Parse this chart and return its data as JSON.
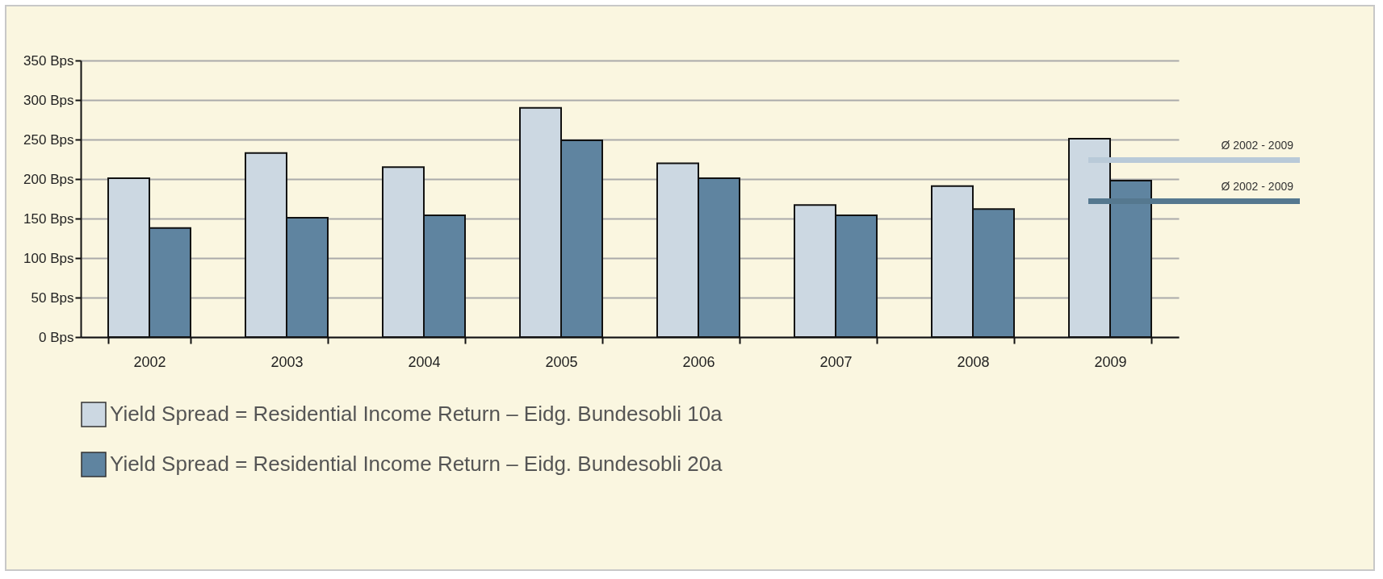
{
  "chart_data": {
    "type": "bar",
    "categories": [
      "2002",
      "2003",
      "2004",
      "2005",
      "2006",
      "2007",
      "2008",
      "2009"
    ],
    "series": [
      {
        "name": "Yield Spread = Residential Income Return – Eidg. Bundesobli 10a",
        "color": "#ccd8e2",
        "values": [
          201,
          233,
          215,
          290,
          220,
          167,
          191,
          251
        ]
      },
      {
        "name": "Yield Spread = Residential Income Return – Eidg. Bundesobli 20a",
        "color": "#5f84a0",
        "values": [
          138,
          151,
          154,
          249,
          201,
          154,
          162,
          198
        ]
      }
    ],
    "ylim": [
      0,
      350
    ],
    "yticks": [
      {
        "value": 0,
        "label": "0 Bps"
      },
      {
        "value": 50,
        "label": "50 Bps"
      },
      {
        "value": 100,
        "label": "100 Bps"
      },
      {
        "value": 150,
        "label": "150 Bps"
      },
      {
        "value": 200,
        "label": "200 Bps"
      },
      {
        "value": 250,
        "label": "250 Bps"
      },
      {
        "value": 300,
        "label": "300 Bps"
      },
      {
        "value": 350,
        "label": "350 Bps"
      }
    ],
    "ref_lines": [
      {
        "axis": "y",
        "value": 224,
        "label": "Ø 2002 - 2009",
        "color": "#b9cad8"
      },
      {
        "axis": "y",
        "value": 172,
        "label": "Ø 2002 - 2009",
        "color": "#55788f"
      }
    ],
    "grid": "y",
    "legend": "bottom"
  }
}
